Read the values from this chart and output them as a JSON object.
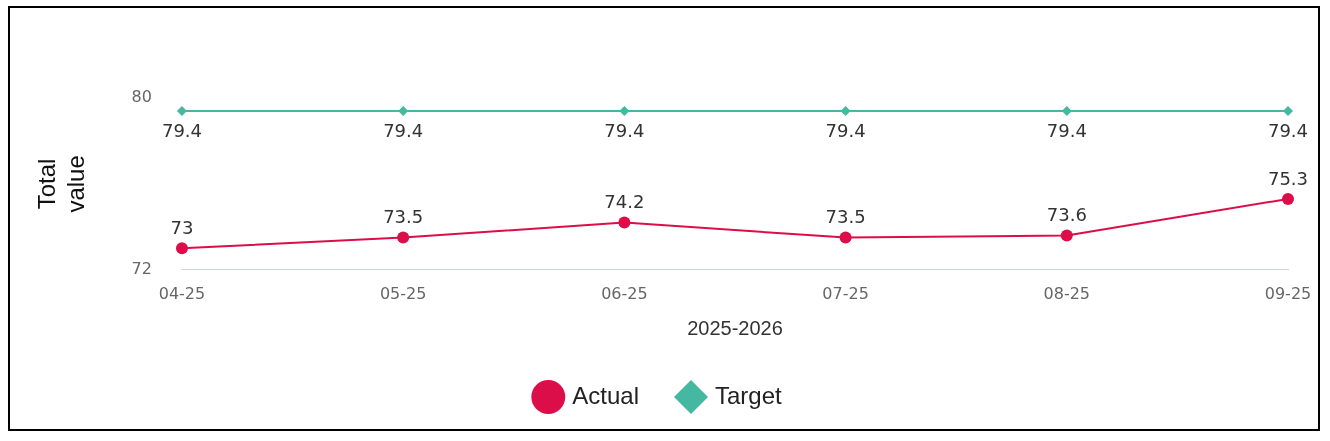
{
  "chart_data": {
    "type": "line",
    "xlabel": "2025-2026",
    "ylabel": "Total value",
    "categories": [
      "04-25",
      "05-25",
      "06-25",
      "07-25",
      "08-25",
      "09-25"
    ],
    "series": [
      {
        "name": "Actual",
        "color": "#dc0e4a",
        "marker": "circle",
        "values": [
          73,
          73.5,
          74.2,
          73.5,
          73.6,
          75.3
        ]
      },
      {
        "name": "Target",
        "color": "#44b8a0",
        "marker": "diamond",
        "values": [
          79.4,
          79.4,
          79.4,
          79.4,
          79.4,
          79.4
        ]
      }
    ],
    "ylim": [
      72,
      80
    ],
    "yticks": [
      72,
      80
    ],
    "grid": false,
    "legend": "bottom",
    "data_labels": true
  }
}
